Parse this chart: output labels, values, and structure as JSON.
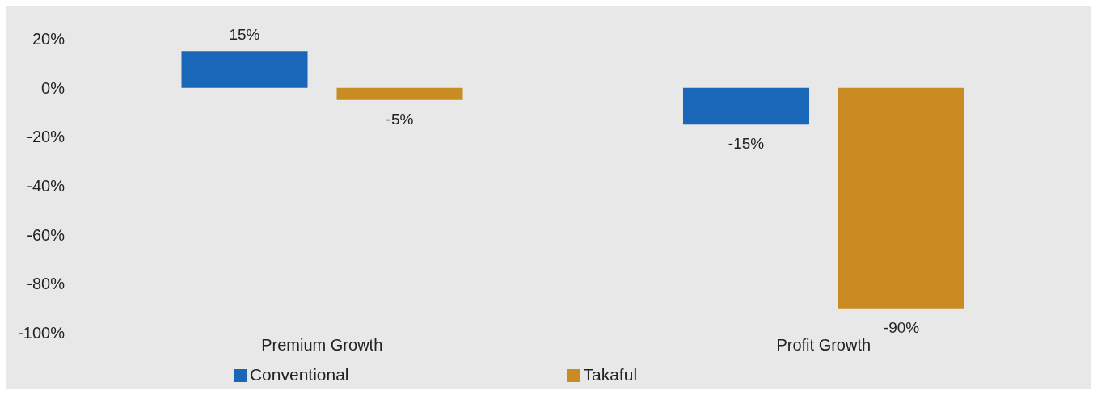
{
  "chart_data": {
    "type": "bar",
    "categories": [
      "Premium Growth",
      "Profit Growth"
    ],
    "series": [
      {
        "name": "Conventional",
        "color": "#1a66b8",
        "values": [
          15,
          -15
        ],
        "value_labels": [
          "15%",
          "-15%"
        ]
      },
      {
        "name": "Takaful",
        "color": "#c98b22",
        "values": [
          -5,
          -90
        ],
        "value_labels": [
          "-5%",
          "-90%"
        ]
      }
    ],
    "ylim": [
      -100,
      20
    ],
    "yticks": [
      {
        "value": 20,
        "label": "20%"
      },
      {
        "value": 0,
        "label": "0%"
      },
      {
        "value": -20,
        "label": "-20%"
      },
      {
        "value": -40,
        "label": "-40%"
      },
      {
        "value": -60,
        "label": "-60%"
      },
      {
        "value": -80,
        "label": "-80%"
      },
      {
        "value": -100,
        "label": "-100%"
      }
    ],
    "grid": false,
    "legend": "bottom"
  }
}
